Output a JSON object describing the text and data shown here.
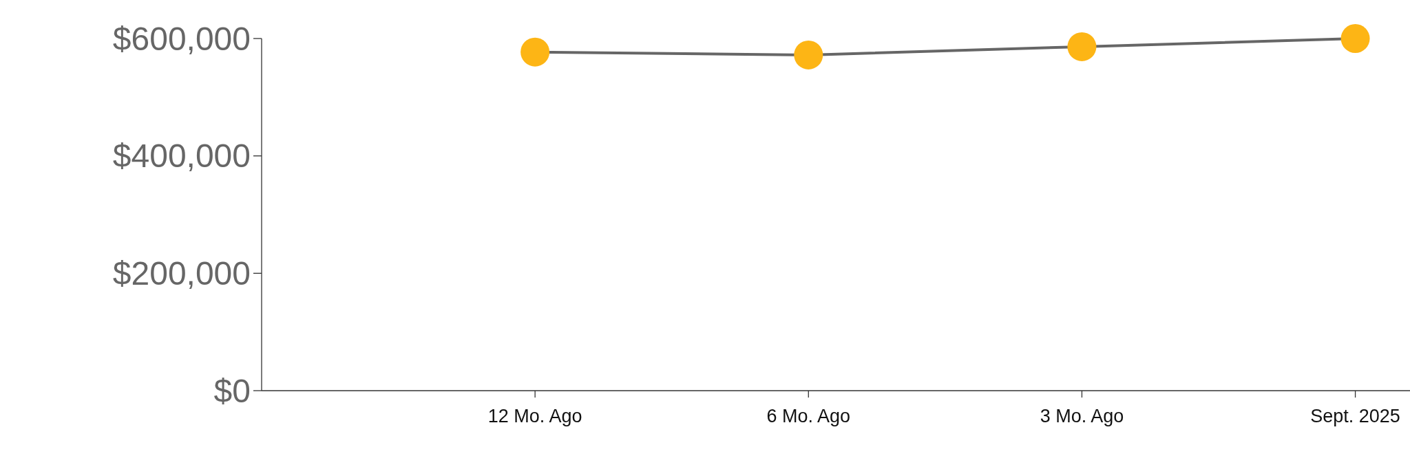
{
  "chart_data": {
    "type": "line",
    "categories": [
      "12 Mo. Ago",
      "6 Mo. Ago",
      "3 Mo. Ago",
      "Sept. 2025"
    ],
    "series": [
      {
        "color": "#666666",
        "colors": [
          "#fdb515",
          "#fdb515",
          "#fdb515",
          "#fdb515"
        ],
        "values": [
          577000,
          572000,
          586000,
          600000
        ]
      }
    ],
    "marker": "circle",
    "ylim": [
      0,
      600000
    ],
    "yticks": [
      {
        "value": 0,
        "label": "$0"
      },
      {
        "value": 200000,
        "label": "$200,000"
      },
      {
        "value": 400000,
        "label": "$400,000"
      },
      {
        "value": 600000,
        "label": "$600,000"
      }
    ],
    "grid": false
  }
}
